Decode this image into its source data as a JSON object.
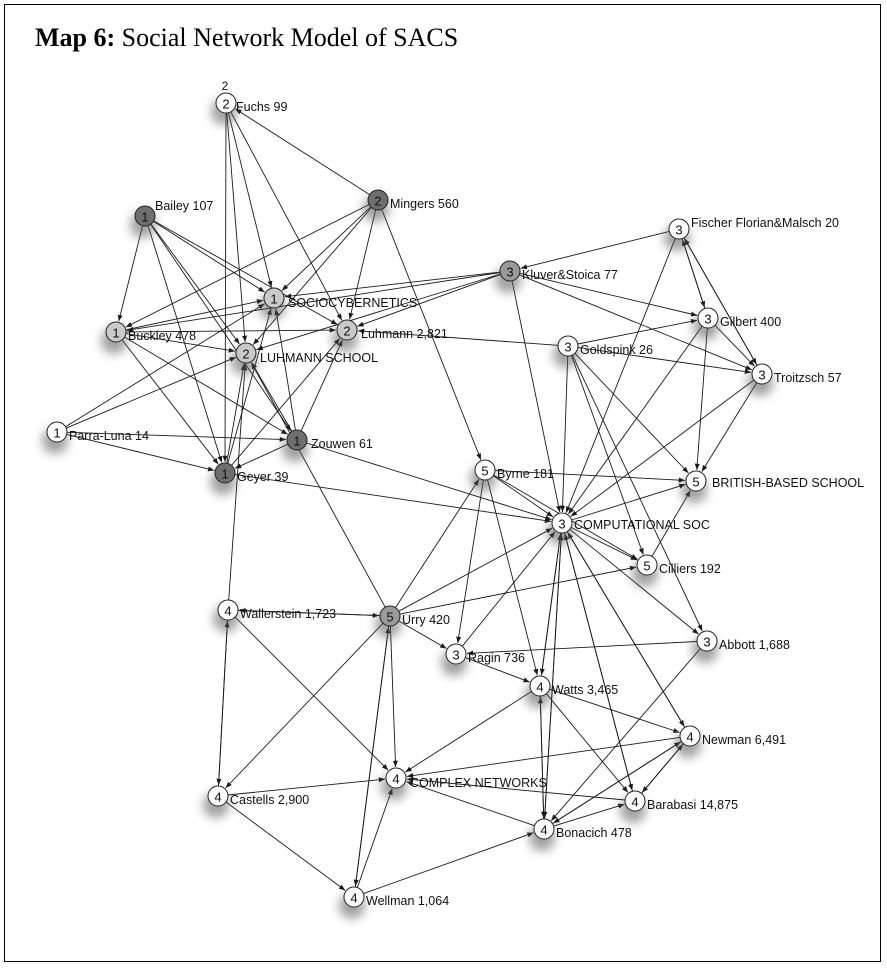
{
  "title": {
    "bold": "Map 6:",
    "rest": " Social Network Model of SACS"
  },
  "colors": {
    "white": "#ffffff",
    "light": "#c9c9c9",
    "mid": "#9a9a9a",
    "dark": "#6e6e6e",
    "edge": "#1a1a1a"
  },
  "nodes": [
    {
      "id": "fuchs",
      "num": "2",
      "label": "Fuchs 99",
      "fill": "white",
      "extra": "2"
    },
    {
      "id": "bailey",
      "num": "1",
      "label": "Bailey 107",
      "fill": "dark"
    },
    {
      "id": "mingers",
      "num": "2",
      "label": "Mingers 560",
      "fill": "dark"
    },
    {
      "id": "sociocyb",
      "num": "1",
      "label": "SOCIOCYBERNETICS",
      "fill": "light"
    },
    {
      "id": "buckley",
      "num": "1",
      "label": "Buckley 478",
      "fill": "light"
    },
    {
      "id": "luhmann",
      "num": "2",
      "label": "Luhmann 2,821",
      "fill": "light"
    },
    {
      "id": "luhmannschool",
      "num": "2",
      "label": "LUHMANN SCHOOL",
      "fill": "light"
    },
    {
      "id": "parra",
      "num": "1",
      "label": "Parra-Luna 14",
      "fill": "white"
    },
    {
      "id": "zouwen",
      "num": "1",
      "label": "Zouwen 61",
      "fill": "dark"
    },
    {
      "id": "geyer",
      "num": "1",
      "label": "Geyer 39",
      "fill": "dark"
    },
    {
      "id": "kluver",
      "num": "3",
      "label": "Kluver&Stoica 77",
      "fill": "mid"
    },
    {
      "id": "fischer",
      "num": "3",
      "label": "Fischer Florian&Malsch 20",
      "fill": "white"
    },
    {
      "id": "gilbert",
      "num": "3",
      "label": "Gilbert 400",
      "fill": "white"
    },
    {
      "id": "goldspink",
      "num": "3",
      "label": "Goldspink 26",
      "fill": "white"
    },
    {
      "id": "troitzsch",
      "num": "3",
      "label": "Troitzsch 57",
      "fill": "white"
    },
    {
      "id": "byrne",
      "num": "5",
      "label": "Byrne 181",
      "fill": "white"
    },
    {
      "id": "british",
      "num": "5",
      "label": "BRITISH-BASED SCHOOL",
      "fill": "white"
    },
    {
      "id": "compsoc",
      "num": "3",
      "label": "COMPUTATIONAL SOC",
      "fill": "white"
    },
    {
      "id": "cilliers",
      "num": "5",
      "label": "Cilliers 192",
      "fill": "white"
    },
    {
      "id": "wallerstein",
      "num": "4",
      "label": "Wallerstein 1,723",
      "fill": "white"
    },
    {
      "id": "urry",
      "num": "5",
      "label": "Urry 420",
      "fill": "mid"
    },
    {
      "id": "ragin",
      "num": "3",
      "label": "Ragin 736",
      "fill": "white"
    },
    {
      "id": "abbott",
      "num": "3",
      "label": "Abbott 1,688",
      "fill": "white"
    },
    {
      "id": "watts",
      "num": "4",
      "label": "Watts 3,465",
      "fill": "white"
    },
    {
      "id": "newman",
      "num": "4",
      "label": "Newman 6,491",
      "fill": "white"
    },
    {
      "id": "castells",
      "num": "4",
      "label": "Castells 2,900",
      "fill": "white"
    },
    {
      "id": "complex",
      "num": "4",
      "label": "COMPLEX NETWORKS",
      "fill": "white"
    },
    {
      "id": "barabasi",
      "num": "4",
      "label": "Barabasi 14,875",
      "fill": "white"
    },
    {
      "id": "bonacich",
      "num": "4",
      "label": "Bonacich 478",
      "fill": "white"
    },
    {
      "id": "wellman",
      "num": "4",
      "label": "Wellman 1,064",
      "fill": "white"
    }
  ],
  "edges": [
    [
      "fuchs",
      "luhmannschool"
    ],
    [
      "fuchs",
      "sociocyb"
    ],
    [
      "fuchs",
      "luhmann"
    ],
    [
      "fuchs",
      "geyer"
    ],
    [
      "mingers",
      "fuchs"
    ],
    [
      "mingers",
      "sociocyb"
    ],
    [
      "mingers",
      "luhmannschool"
    ],
    [
      "mingers",
      "buckley"
    ],
    [
      "mingers",
      "luhmann"
    ],
    [
      "mingers",
      "byrne"
    ],
    [
      "bailey",
      "sociocyb"
    ],
    [
      "bailey",
      "luhmannschool"
    ],
    [
      "bailey",
      "luhmann"
    ],
    [
      "bailey",
      "buckley"
    ],
    [
      "bailey",
      "geyer"
    ],
    [
      "bailey",
      "zouwen"
    ],
    [
      "buckley",
      "sociocyb"
    ],
    [
      "buckley",
      "luhmannschool"
    ],
    [
      "buckley",
      "luhmann"
    ],
    [
      "buckley",
      "geyer"
    ],
    [
      "buckley",
      "zouwen"
    ],
    [
      "parra",
      "luhmannschool"
    ],
    [
      "parra",
      "sociocyb"
    ],
    [
      "parra",
      "zouwen"
    ],
    [
      "parra",
      "geyer"
    ],
    [
      "zouwen",
      "luhmannschool"
    ],
    [
      "zouwen",
      "sociocyb"
    ],
    [
      "zouwen",
      "luhmann"
    ],
    [
      "zouwen",
      "geyer"
    ],
    [
      "zouwen",
      "compsoc"
    ],
    [
      "geyer",
      "luhmannschool"
    ],
    [
      "geyer",
      "sociocyb"
    ],
    [
      "geyer",
      "luhmann"
    ],
    [
      "geyer",
      "compsoc"
    ],
    [
      "kluver",
      "sociocyb"
    ],
    [
      "kluver",
      "luhmann"
    ],
    [
      "kluver",
      "luhmannschool"
    ],
    [
      "kluver",
      "gilbert"
    ],
    [
      "kluver",
      "troitzsch"
    ],
    [
      "kluver",
      "compsoc"
    ],
    [
      "kluver",
      "buckley"
    ],
    [
      "fischer",
      "kluver"
    ],
    [
      "fischer",
      "gilbert"
    ],
    [
      "fischer",
      "troitzsch"
    ],
    [
      "fischer",
      "compsoc"
    ],
    [
      "gilbert",
      "fischer"
    ],
    [
      "gilbert",
      "troitzsch"
    ],
    [
      "gilbert",
      "british"
    ],
    [
      "gilbert",
      "compsoc"
    ],
    [
      "goldspink",
      "luhmann"
    ],
    [
      "goldspink",
      "gilbert"
    ],
    [
      "goldspink",
      "troitzsch"
    ],
    [
      "goldspink",
      "compsoc"
    ],
    [
      "goldspink",
      "british"
    ],
    [
      "goldspink",
      "cilliers"
    ],
    [
      "goldspink",
      "abbott"
    ],
    [
      "troitzsch",
      "fischer"
    ],
    [
      "troitzsch",
      "british"
    ],
    [
      "troitzsch",
      "compsoc"
    ],
    [
      "byrne",
      "compsoc"
    ],
    [
      "byrne",
      "british"
    ],
    [
      "byrne",
      "ragin"
    ],
    [
      "byrne",
      "watts"
    ],
    [
      "byrne",
      "cilliers"
    ],
    [
      "compsoc",
      "cilliers"
    ],
    [
      "compsoc",
      "british"
    ],
    [
      "compsoc",
      "abbott"
    ],
    [
      "compsoc",
      "newman"
    ],
    [
      "compsoc",
      "barabasi"
    ],
    [
      "compsoc",
      "bonacich"
    ],
    [
      "compsoc",
      "watts"
    ],
    [
      "cilliers",
      "british"
    ],
    [
      "urry",
      "compsoc"
    ],
    [
      "urry",
      "byrne"
    ],
    [
      "urry",
      "cilliers"
    ],
    [
      "urry",
      "ragin"
    ],
    [
      "urry",
      "complex"
    ],
    [
      "urry",
      "castells"
    ],
    [
      "urry",
      "wellman"
    ],
    [
      "urry",
      "wallerstein"
    ],
    [
      "urry",
      "luhmannschool"
    ],
    [
      "wallerstein",
      "luhmannschool"
    ],
    [
      "wallerstein",
      "castells"
    ],
    [
      "wallerstein",
      "complex"
    ],
    [
      "wallerstein",
      "urry"
    ],
    [
      "ragin",
      "compsoc"
    ],
    [
      "ragin",
      "watts"
    ],
    [
      "abbott",
      "ragin"
    ],
    [
      "abbott",
      "bonacich"
    ],
    [
      "watts",
      "complex"
    ],
    [
      "watts",
      "newman"
    ],
    [
      "watts",
      "barabasi"
    ],
    [
      "watts",
      "compsoc"
    ],
    [
      "watts",
      "bonacich"
    ],
    [
      "newman",
      "complex"
    ],
    [
      "newman",
      "barabasi"
    ],
    [
      "newman",
      "compsoc"
    ],
    [
      "newman",
      "bonacich"
    ],
    [
      "barabasi",
      "newman"
    ],
    [
      "barabasi",
      "complex"
    ],
    [
      "barabasi",
      "compsoc"
    ],
    [
      "bonacich",
      "complex"
    ],
    [
      "bonacich",
      "barabasi"
    ],
    [
      "bonacich",
      "compsoc"
    ],
    [
      "bonacich",
      "watts"
    ],
    [
      "bonacich",
      "newman"
    ],
    [
      "castells",
      "complex"
    ],
    [
      "castells",
      "wallerstein"
    ],
    [
      "castells",
      "wellman"
    ],
    [
      "wellman",
      "complex"
    ],
    [
      "wellman",
      "bonacich"
    ],
    [
      "wellman",
      "urry"
    ]
  ]
}
